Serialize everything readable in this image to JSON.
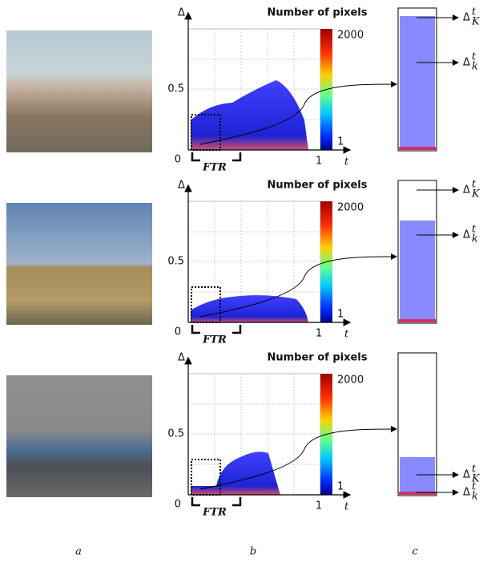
{
  "panels": [
    {
      "y_axis_label": "Δ",
      "x_axis_label": "t",
      "colorbar_title": "Number of pixels",
      "colorbar_ticks": [
        "2000",
        "1"
      ],
      "y_ticks": [
        "0.5",
        "0"
      ],
      "x_ticks": [
        "1"
      ],
      "region_label": "FTR",
      "zoom_labels": [
        {
          "base": "Δ",
          "sup": "t",
          "sub": "K"
        },
        {
          "base": "Δ",
          "sup": "t",
          "sub": "k"
        }
      ]
    },
    {
      "y_axis_label": "Δ",
      "x_axis_label": "t",
      "colorbar_title": "Number of pixels",
      "colorbar_ticks": [
        "2000",
        "1"
      ],
      "y_ticks": [
        "0.5",
        "0"
      ],
      "x_ticks": [
        "1"
      ],
      "region_label": "FTR",
      "zoom_labels": [
        {
          "base": "Δ",
          "sup": "t",
          "sub": "K"
        },
        {
          "base": "Δ",
          "sup": "t",
          "sub": "k"
        }
      ]
    },
    {
      "y_axis_label": "Δ",
      "x_axis_label": "t",
      "colorbar_title": "Number of pixels",
      "colorbar_ticks": [
        "2000",
        "1"
      ],
      "y_ticks": [
        "0.5",
        "0"
      ],
      "x_ticks": [
        "1"
      ],
      "region_label": "FTR",
      "zoom_labels": [
        {
          "base": "Δ",
          "sup": "t",
          "sub": "K"
        },
        {
          "base": "Δ",
          "sup": "t",
          "sub": "k"
        }
      ]
    }
  ],
  "column_labels": [
    "a",
    "b",
    "c"
  ]
}
